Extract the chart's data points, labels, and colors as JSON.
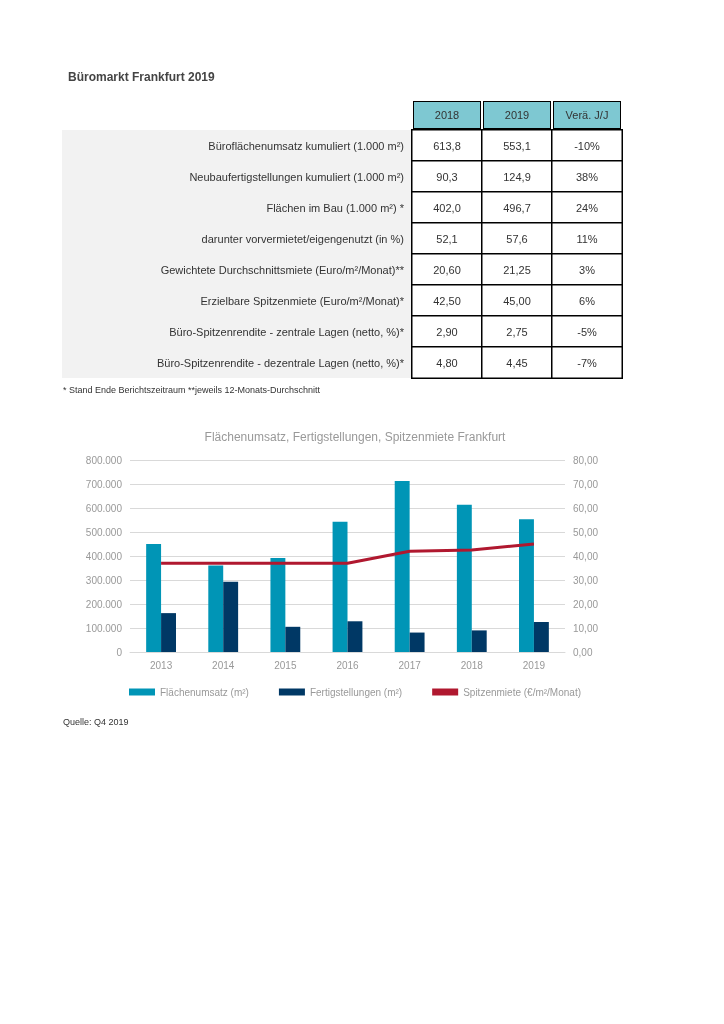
{
  "chart_data": [
    {
      "type": "heatmap",
      "title": "Büromarkt Frankfurt 2019",
      "categories": [
        "2018",
        "2019",
        "Verä. J/J"
      ],
      "y_categories": [
        "Büroflächenumsatz kumuliert (1.000 m²)",
        "Neubaufertigstellungen kumuliert (1.000 m²)",
        "Flächen im Bau (1.000 m²) *",
        "darunter vorvermietet/eigengenutzt (in %)",
        "Gewichtete Durchschnittsmiete (Euro/m²/Monat)**",
        "Erzielbare Spitzenmiete (Euro/m²/Monat)*",
        "Büro-Spitzenrendite - zentrale Lagen (netto, %)*",
        "Büro-Spitzenrendite - dezentrale Lagen (netto, %)*"
      ],
      "cells": [
        [
          null,
          null,
          null
        ],
        [
          null,
          null,
          null
        ],
        [
          null,
          null,
          null
        ],
        [
          null,
          null,
          null
        ],
        [
          null,
          null,
          null
        ],
        [
          null,
          null,
          null
        ],
        [
          null,
          null,
          null
        ],
        [
          null,
          null,
          null
        ]
      ],
      "cell_labels": [
        [
          "613,8",
          "553,1",
          "-10%"
        ],
        [
          "90,3",
          "124,9",
          "38%"
        ],
        [
          "402,0",
          "496,7",
          "24%"
        ],
        [
          "52,1",
          "57,6",
          "11%"
        ],
        [
          "20,60",
          "21,25",
          "3%"
        ],
        [
          "42,50",
          "45,00",
          "6%"
        ],
        [
          "2,90",
          "2,75",
          "-5%"
        ],
        [
          "4,80",
          "4,45",
          "-7%"
        ]
      ],
      "annotations": [
        "* Stand Ende Berichtszeitraum **jeweils 12-Monats-Durchschnitt"
      ]
    },
    {
      "type": "bar",
      "title": "Flächenumsatz, Fertigstellungen, Spitzenmiete Frankfurt",
      "categories": [
        "2013",
        "2014",
        "2015",
        "2016",
        "2017",
        "2018",
        "2019"
      ],
      "series": [
        {
          "name": "Flächenumsatz (m²)",
          "color": "#0095b6",
          "values": [
            450000,
            360000,
            392000,
            543000,
            712000,
            614000,
            553000
          ]
        },
        {
          "name": "Fertigstellungen (m²)",
          "color": "#003865",
          "values": [
            162000,
            293000,
            105000,
            128000,
            81000,
            90000,
            125000
          ]
        },
        {
          "name": "Spitzenmiete (€/m²/Monat)",
          "type": "line",
          "axis": "y2",
          "color": "#b0182f",
          "values": [
            37,
            37,
            37,
            37,
            42,
            42.5,
            45
          ]
        }
      ],
      "ylim": [
        0,
        800000
      ],
      "yticks": [
        0,
        {
          "value": 100000,
          "label": "100.000"
        },
        {
          "value": 200000,
          "label": "200.000"
        },
        {
          "value": 300000,
          "label": "300.000"
        },
        {
          "value": 400000,
          "label": "400.000"
        },
        {
          "value": 500000,
          "label": "500.000"
        },
        {
          "value": 600000,
          "label": "600.000"
        },
        {
          "value": 700000,
          "label": "700.000"
        },
        {
          "value": 800000,
          "label": "800.000"
        }
      ],
      "y2lim": [
        0,
        80
      ],
      "y2ticks": [
        {
          "value": 0,
          "label": "0,00"
        },
        {
          "value": 10,
          "label": "10,00"
        },
        {
          "value": 20,
          "label": "20,00"
        },
        {
          "value": 30,
          "label": "30,00"
        },
        {
          "value": 40,
          "label": "40,00"
        },
        {
          "value": 50,
          "label": "50,00"
        },
        {
          "value": 60,
          "label": "60,00"
        },
        {
          "value": 70,
          "label": "70,00"
        },
        {
          "value": 80,
          "label": "80,00"
        }
      ],
      "grid": "y",
      "legend": "bottom",
      "marker": "none",
      "annotations": [
        "Quelle: Q4 2019"
      ]
    }
  ]
}
